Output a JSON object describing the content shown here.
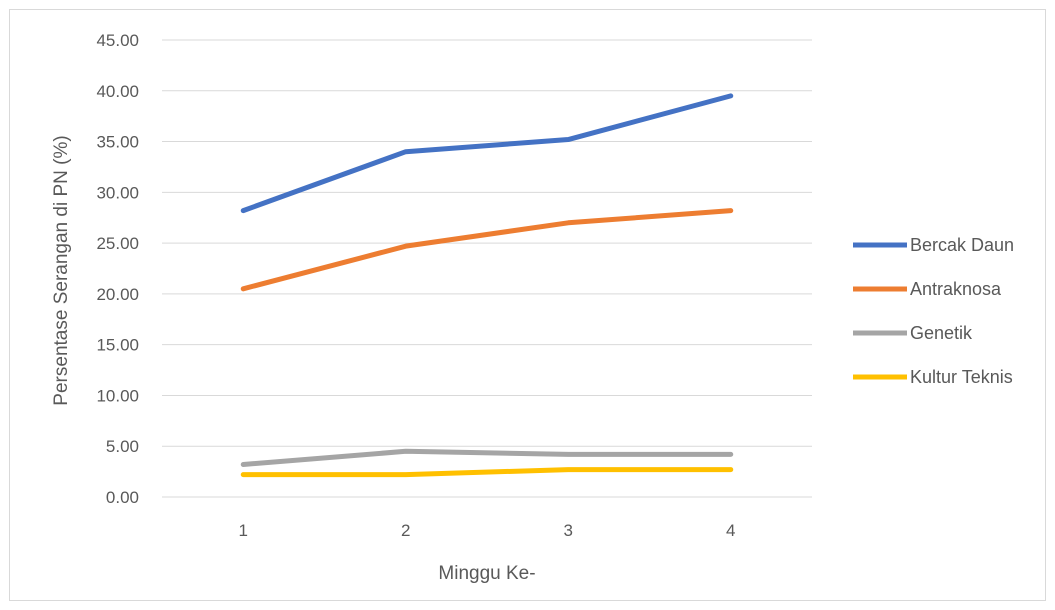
{
  "chart_data": {
    "type": "line",
    "title": "",
    "xlabel": "Minggu Ke-",
    "ylabel": "Persentase Serangan di PN (%)",
    "categories": [
      "1",
      "2",
      "3",
      "4"
    ],
    "ylim": [
      0,
      45
    ],
    "ytick_step": 5,
    "ytick_labels": [
      "0.00",
      "5.00",
      "10.00",
      "15.00",
      "20.00",
      "25.00",
      "30.00",
      "35.00",
      "40.00",
      "45.00"
    ],
    "grid": "horizontal",
    "legend_position": "right",
    "series": [
      {
        "name": "Bercak Daun",
        "color": "#4472C4",
        "values": [
          28.2,
          34.0,
          35.2,
          39.5
        ]
      },
      {
        "name": "Antraknosa",
        "color": "#ED7D31",
        "values": [
          20.5,
          24.7,
          27.0,
          28.2
        ]
      },
      {
        "name": "Genetik",
        "color": "#A5A5A5",
        "values": [
          3.2,
          4.5,
          4.2,
          4.2
        ]
      },
      {
        "name": "Kultur Teknis",
        "color": "#FFC000",
        "values": [
          2.2,
          2.2,
          2.7,
          2.7
        ]
      }
    ]
  }
}
